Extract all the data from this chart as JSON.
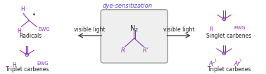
{
  "bg_color": "#ffffff",
  "purple": "#8833bb",
  "black": "#222222",
  "dye_color": "#5544dd",
  "arrow_color": "#444444",
  "box_bg": "#efefef",
  "box_edge": "#999999",
  "dye_text": "dye-sensitization",
  "vis_light_left": "visible light",
  "vis_light_right": "visible light",
  "left_top_label": "Radicals",
  "left_bot_label": "Triplet carbenes",
  "right_top_label": "Singlet carbenes",
  "right_bot_label": "Triplet carbenes",
  "fig_w": 3.78,
  "fig_h": 1.06,
  "dpi": 100
}
